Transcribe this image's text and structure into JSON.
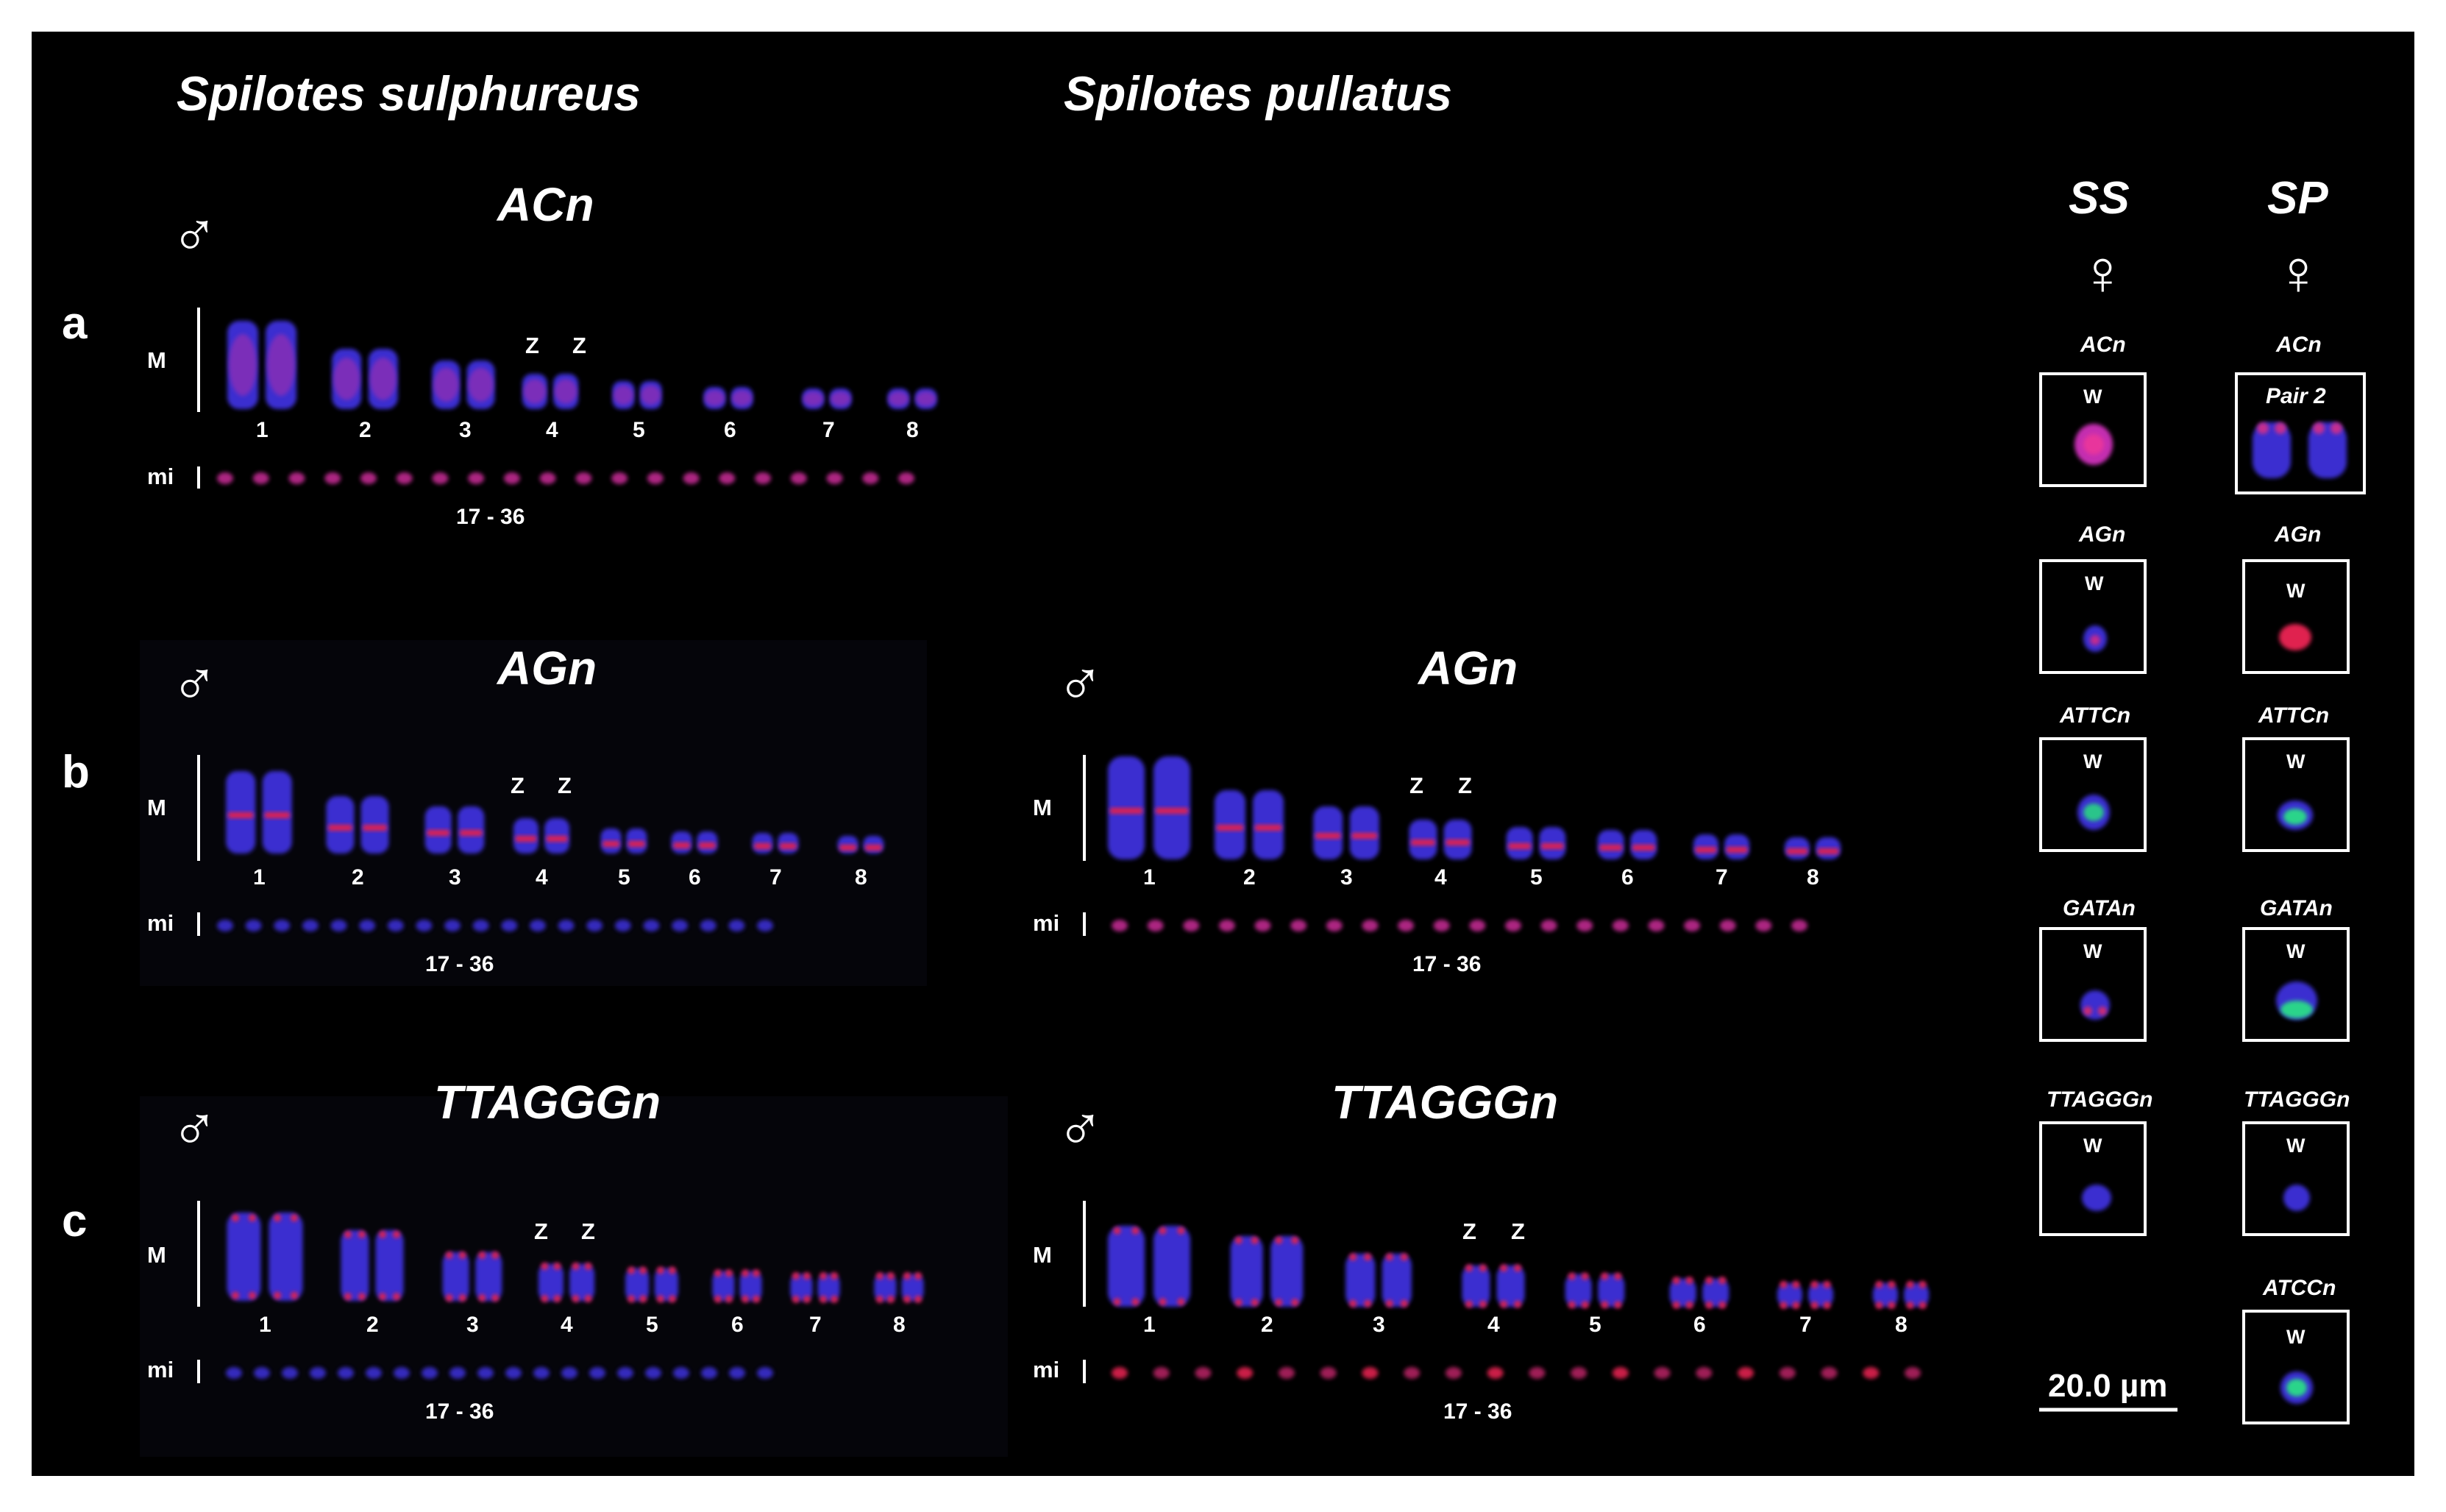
{
  "species": {
    "left": "Spilotes sulphureus",
    "right": "Spilotes pullatus"
  },
  "colors": {
    "background": "#000000",
    "dapi": "#3b28d8",
    "red": "#e0204f",
    "green": "#2ad48a",
    "text": "#ffffff"
  },
  "male_symbol": "♂",
  "female_symbol": "♀",
  "labels": {
    "macro": "M",
    "micro": "mi",
    "micro_range": "17 - 36",
    "z": "Z",
    "w": "W"
  },
  "rows": [
    {
      "letter": "a",
      "panels": [
        {
          "probe": "ACn",
          "signal": "magenta"
        }
      ]
    },
    {
      "letter": "b",
      "panels": [
        {
          "probe": "AGn",
          "signal": "red-band"
        },
        {
          "probe": "AGn",
          "signal": "red-band"
        }
      ]
    },
    {
      "letter": "c",
      "panels": [
        {
          "probe": "TTAGGGn",
          "signal": "telomeric"
        },
        {
          "probe": "TTAGGGn",
          "signal": "telomeric"
        }
      ]
    }
  ],
  "pairs": [
    "1",
    "2",
    "3",
    "4",
    "5",
    "6",
    "7",
    "8"
  ],
  "w_panel": {
    "columns": [
      "SS",
      "SP"
    ],
    "ss": [
      "ACn",
      "AGn",
      "ATTCn",
      "GATAn",
      "TTAGGGn"
    ],
    "sp": [
      "ACn",
      "AGn",
      "ATTCn",
      "GATAn",
      "TTAGGGn",
      "ATCCn"
    ],
    "sp_first_label": "Pair 2"
  },
  "scale_bar": "20.0 µm"
}
